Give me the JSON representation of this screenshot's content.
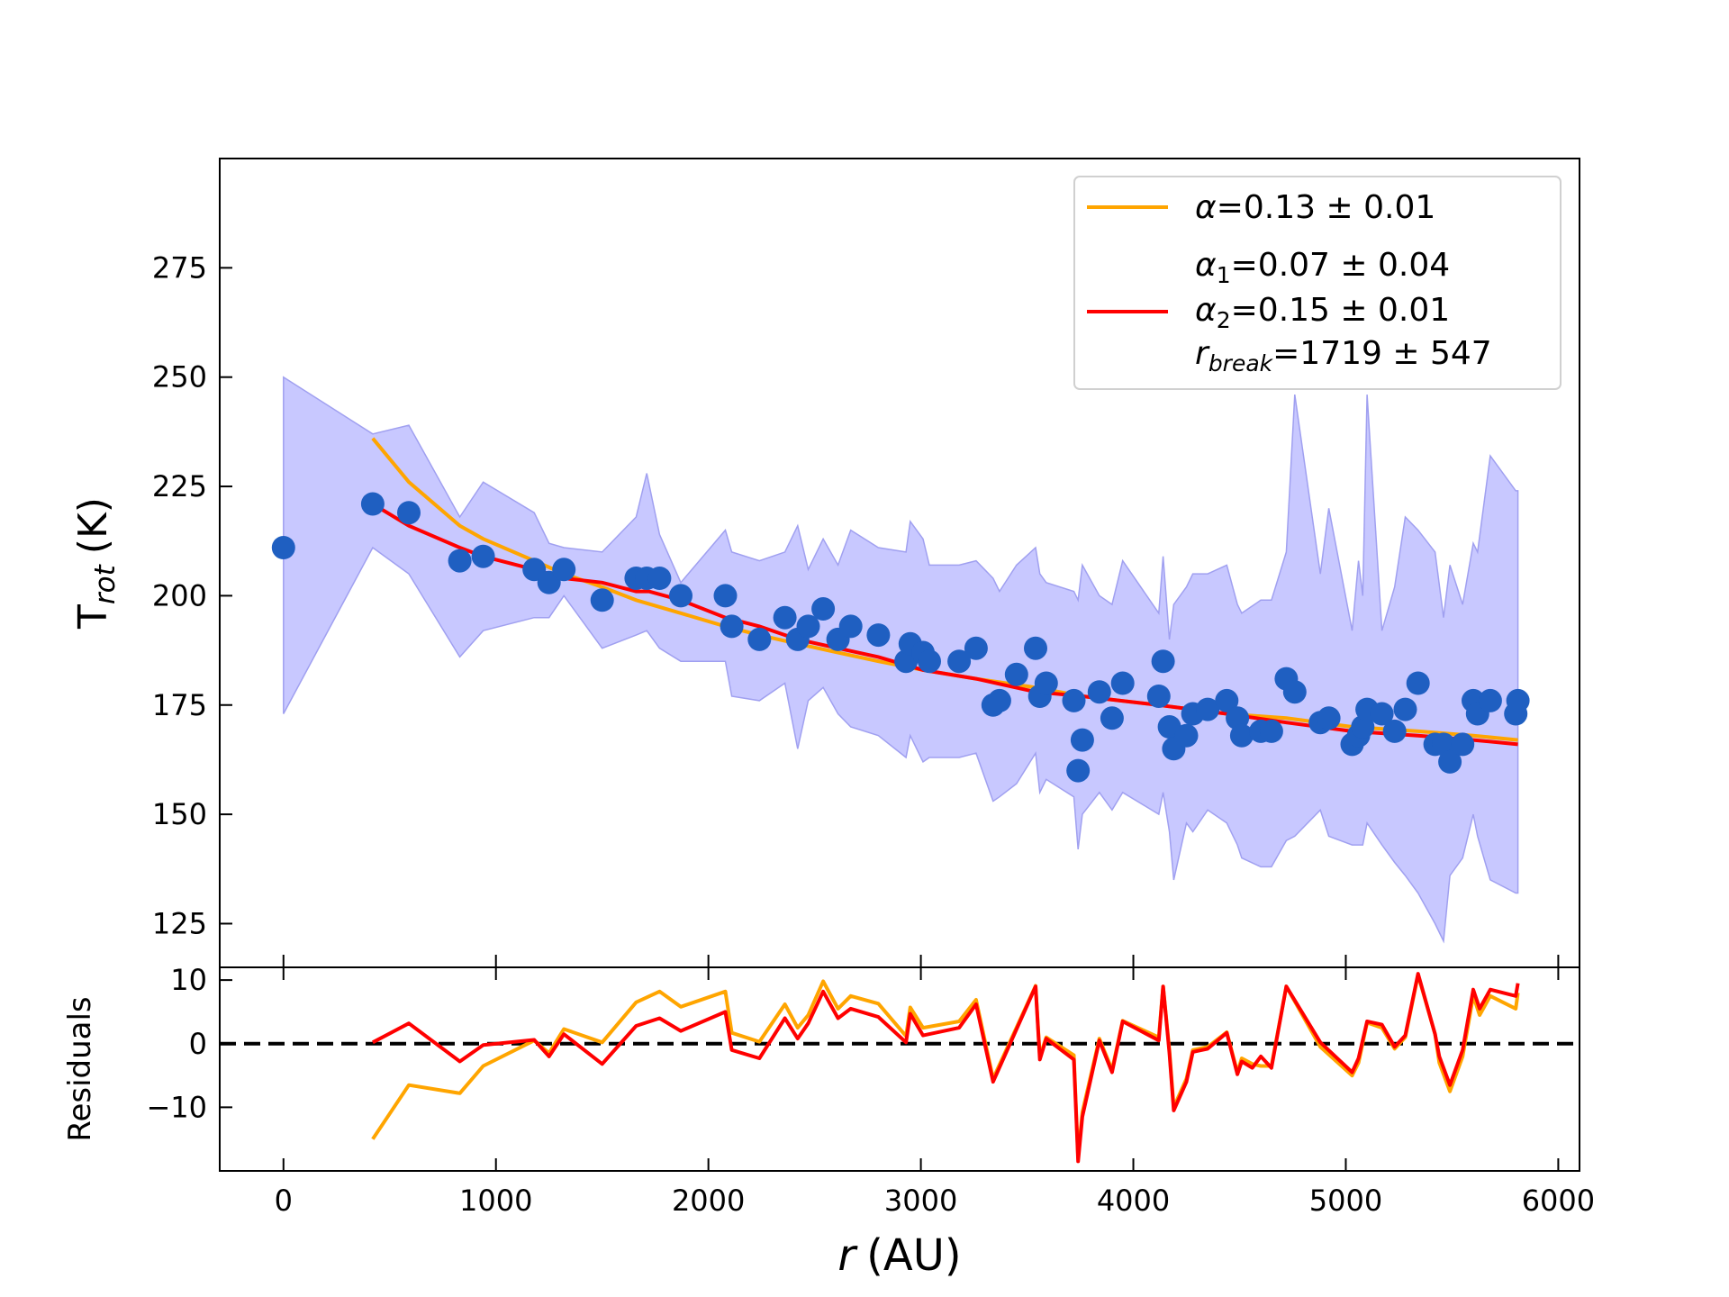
{
  "chart_data": [
    {
      "type": "scatter",
      "ylabel_main": "T",
      "ylabel_sub": "rot",
      "ylabel_unit": "(K)",
      "xlim": [
        -300,
        6100
      ],
      "ylim": [
        115,
        300
      ],
      "yticks": [
        125,
        150,
        175,
        200,
        225,
        250,
        275
      ],
      "grid": false,
      "legend_position": "top-right",
      "colors": {
        "points": "#1f5fc1",
        "band_fill": "#c8c8ff",
        "band_edge": "#a0a0f0",
        "single_fit": "#ffa500",
        "broken_fit": "#ff0000"
      },
      "legend": {
        "single_fit": {
          "sym": "α",
          "text": "=0.13 ± 0.01"
        },
        "broken_fit": {
          "a1_sym": "α",
          "a1_sub": "1",
          "a1_text": "=0.07 ± 0.04",
          "a2_sym": "α",
          "a2_sub": "2",
          "a2_text": "=0.15 ± 0.01",
          "rb_sym": "r",
          "rb_sub": "break",
          "rb_text": "=1719 ± 547"
        }
      },
      "points": {
        "x": [
          0,
          420,
          590,
          830,
          940,
          1180,
          1250,
          1320,
          1500,
          1660,
          1710,
          1770,
          1870,
          2080,
          2110,
          2240,
          2360,
          2420,
          2470,
          2540,
          2610,
          2670,
          2800,
          2930,
          2950,
          3010,
          3040,
          3180,
          3260,
          3340,
          3370,
          3450,
          3540,
          3560,
          3590,
          3720,
          3740,
          3760,
          3840,
          3900,
          3950,
          4120,
          4140,
          4170,
          4190,
          4250,
          4280,
          4350,
          4440,
          4490,
          4510,
          4600,
          4650,
          4720,
          4760,
          4880,
          4920,
          5030,
          5060,
          5080,
          5100,
          5170,
          5230,
          5280,
          5340,
          5420,
          5460,
          5490,
          5550,
          5600,
          5620,
          5680,
          5800,
          5810
        ],
        "y": [
          211,
          221,
          219,
          208,
          209,
          206,
          203,
          206,
          199,
          204,
          204,
          204,
          200,
          200,
          193,
          190,
          195,
          190,
          193,
          197,
          190,
          193,
          191,
          185,
          189,
          187,
          185,
          185,
          188,
          175,
          176,
          182,
          188,
          177,
          180,
          176,
          160,
          167,
          178,
          172,
          180,
          177,
          185,
          170,
          165,
          168,
          173,
          174,
          176,
          172,
          168,
          169,
          169,
          181,
          178,
          171,
          172,
          166,
          168,
          170,
          174,
          173,
          169,
          174,
          180,
          166,
          166,
          162,
          166,
          176,
          173,
          176,
          173,
          176
        ]
      },
      "band": {
        "x": [
          0,
          420,
          590,
          830,
          940,
          1180,
          1250,
          1320,
          1500,
          1660,
          1710,
          1770,
          1870,
          2080,
          2110,
          2240,
          2360,
          2420,
          2470,
          2540,
          2610,
          2670,
          2800,
          2930,
          2950,
          3010,
          3040,
          3180,
          3260,
          3340,
          3370,
          3450,
          3540,
          3560,
          3590,
          3720,
          3740,
          3760,
          3840,
          3900,
          3950,
          4120,
          4140,
          4170,
          4190,
          4250,
          4280,
          4350,
          4440,
          4490,
          4510,
          4600,
          4650,
          4720,
          4760,
          4880,
          4920,
          5030,
          5060,
          5080,
          5100,
          5170,
          5230,
          5280,
          5340,
          5420,
          5460,
          5490,
          5550,
          5600,
          5620,
          5680,
          5800,
          5810
        ],
        "upper": [
          250,
          237,
          239,
          218,
          226,
          219,
          212,
          211,
          210,
          218,
          228,
          214,
          203,
          215,
          210,
          208,
          210,
          216,
          206,
          213,
          207,
          215,
          211,
          210,
          217,
          213,
          207,
          207,
          208,
          204,
          201,
          207,
          211,
          205,
          203,
          201,
          199,
          207,
          200,
          198,
          208,
          196,
          209,
          190,
          198,
          202,
          205,
          205,
          207,
          198,
          196,
          199,
          199,
          210,
          246,
          205,
          220,
          192,
          208,
          200,
          246,
          192,
          202,
          218,
          215,
          210,
          195,
          207,
          198,
          212,
          210,
          232,
          224,
          224
        ],
        "lower": [
          173,
          211,
          205,
          186,
          192,
          195,
          195,
          200,
          188,
          191,
          192,
          188,
          185,
          185,
          177,
          176,
          180,
          165,
          176,
          179,
          173,
          170,
          168,
          163,
          168,
          162,
          163,
          163,
          164,
          153,
          154,
          157,
          164,
          155,
          158,
          154,
          142,
          150,
          155,
          151,
          155,
          150,
          155,
          146,
          135,
          148,
          146,
          151,
          148,
          143,
          140,
          138,
          138,
          144,
          145,
          151,
          145,
          143,
          143,
          143,
          148,
          143,
          139,
          136,
          132,
          125,
          121,
          136,
          140,
          150,
          145,
          135,
          132,
          132
        ]
      },
      "single_fit": {
        "x": [
          420,
          590,
          830,
          940,
          1180,
          1320,
          1500,
          1660,
          1870,
          2080,
          2240,
          2420,
          2610,
          2800,
          3010,
          3260,
          3540,
          3760,
          4120,
          4440,
          4720,
          5030,
          5340,
          5600,
          5810
        ],
        "y": [
          236,
          226,
          216,
          213,
          208,
          205,
          202,
          199,
          196,
          193,
          191,
          189,
          187,
          185,
          183,
          181,
          179,
          177,
          175,
          173,
          172,
          170,
          169,
          168,
          167
        ]
      },
      "broken_fit": {
        "x": [
          420,
          590,
          830,
          940,
          1180,
          1320,
          1500,
          1660,
          1720,
          1870,
          2080,
          2240,
          2420,
          2610,
          2800,
          3010,
          3260,
          3540,
          3760,
          4120,
          4440,
          4720,
          5030,
          5340,
          5600,
          5810
        ],
        "y": [
          221,
          216,
          211,
          209,
          206,
          204,
          203,
          201,
          201,
          199,
          195,
          193,
          190,
          188,
          186,
          183,
          181,
          178,
          177,
          175,
          173,
          171,
          169,
          168,
          167,
          166
        ]
      }
    },
    {
      "type": "line",
      "ylabel": "Residuals",
      "xlabel_main": "r",
      "xlabel_unit": "(AU)",
      "xlim": [
        -300,
        6100
      ],
      "ylim": [
        -20,
        12
      ],
      "xticks": [
        0,
        1000,
        2000,
        3000,
        4000,
        5000,
        6000
      ],
      "yticks": [
        10,
        0,
        -10
      ],
      "ytick_labels": [
        "10",
        "0",
        "−10"
      ],
      "zero_line": true,
      "series": [
        {
          "key": "single",
          "color": "#ffa500",
          "x": [
            420,
            590,
            830,
            940,
            1180,
            1250,
            1320,
            1500,
            1660,
            1770,
            1870,
            2080,
            2110,
            2240,
            2360,
            2420,
            2470,
            2540,
            2610,
            2670,
            2800,
            2930,
            2950,
            3010,
            3180,
            3260,
            3340,
            3540,
            3560,
            3590,
            3720,
            3740,
            3760,
            3840,
            3900,
            3950,
            4120,
            4140,
            4170,
            4190,
            4250,
            4280,
            4350,
            4440,
            4490,
            4510,
            4560,
            4600,
            4650,
            4720,
            4880,
            5030,
            5060,
            5100,
            5170,
            5230,
            5280,
            5340,
            5420,
            5440,
            5490,
            5550,
            5600,
            5630,
            5680,
            5800,
            5810
          ],
          "y": [
            -15,
            -6.5,
            -7.8,
            -3.5,
            0.5,
            -1.5,
            2.3,
            0.2,
            6.5,
            8.2,
            5.8,
            8.2,
            1.7,
            0.3,
            6.2,
            2.5,
            4.5,
            9.8,
            5.5,
            7.5,
            6.3,
            1.2,
            5.7,
            2.5,
            3.5,
            6.9,
            -5.5,
            9.1,
            -2.0,
            1.0,
            -1.8,
            -18,
            -10.8,
            0.8,
            -4.1,
            3.6,
            1.0,
            9.0,
            -1.0,
            -10,
            -5.5,
            -1.0,
            -0.5,
            1.8,
            -4.5,
            -2.3,
            -3.2,
            -3.5,
            -3.5,
            9.0,
            -0.5,
            -5.0,
            -3.0,
            3.3,
            2.5,
            -0.8,
            1.0,
            10.8,
            1.5,
            -3.0,
            -7.5,
            -2.0,
            7.5,
            4.5,
            7.5,
            5.5,
            8.0
          ]
        },
        {
          "key": "broken",
          "color": "#ff0000",
          "x": [
            420,
            590,
            830,
            940,
            1180,
            1250,
            1320,
            1500,
            1660,
            1770,
            1870,
            2080,
            2110,
            2240,
            2360,
            2420,
            2470,
            2540,
            2610,
            2670,
            2800,
            2930,
            2950,
            3010,
            3180,
            3260,
            3340,
            3540,
            3560,
            3590,
            3720,
            3740,
            3760,
            3840,
            3900,
            3950,
            4120,
            4140,
            4170,
            4190,
            4250,
            4280,
            4350,
            4440,
            4490,
            4510,
            4560,
            4600,
            4650,
            4720,
            4880,
            5030,
            5060,
            5100,
            5170,
            5230,
            5280,
            5340,
            5420,
            5440,
            5490,
            5550,
            5600,
            5630,
            5680,
            5800,
            5810
          ],
          "y": [
            0.2,
            3.2,
            -2.8,
            -0.2,
            0.6,
            -2.0,
            1.5,
            -3.2,
            2.8,
            4.0,
            2.0,
            5.0,
            -1.0,
            -2.3,
            4.0,
            0.8,
            3.2,
            8.2,
            4.0,
            5.5,
            4.2,
            0.2,
            4.7,
            1.3,
            2.5,
            6.2,
            -6.0,
            9.0,
            -2.5,
            0.8,
            -2.5,
            -18.5,
            -11.5,
            0.5,
            -4.5,
            3.5,
            0.5,
            9.0,
            -1.5,
            -10.5,
            -6.0,
            -1.3,
            -0.8,
            1.7,
            -4.8,
            -2.8,
            -3.8,
            -2.0,
            -3.8,
            9.0,
            0.2,
            -4.5,
            -2.3,
            3.5,
            3.0,
            -0.5,
            1.3,
            11.0,
            1.5,
            -2.0,
            -6.5,
            -1.0,
            8.5,
            5.5,
            8.5,
            7.5,
            9.5
          ]
        }
      ]
    }
  ]
}
